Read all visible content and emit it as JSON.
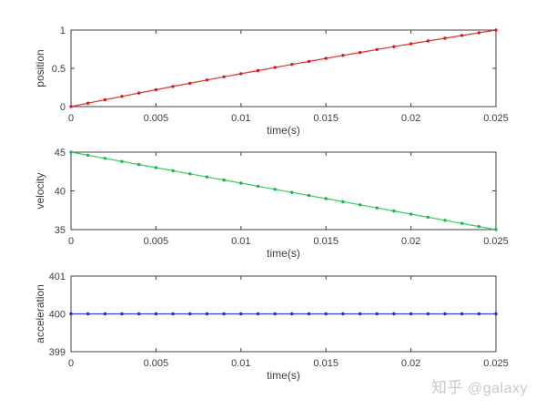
{
  "watermark": {
    "brand": "知乎",
    "user": "@galaxy"
  },
  "axis_color": "#404040",
  "tick_label_color": "#3d3d3d",
  "chart_data": [
    {
      "type": "line",
      "title": "",
      "xlabel": "time(s)",
      "ylabel": "position",
      "xlim": [
        0,
        0.025
      ],
      "ylim": [
        0,
        1
      ],
      "xticks": [
        0,
        0.005,
        0.01,
        0.015,
        0.02,
        0.025
      ],
      "xtick_labels": [
        "0",
        "0.005",
        "0.01",
        "0.015",
        "0.02",
        "0.025"
      ],
      "yticks": [
        0,
        0.5,
        1
      ],
      "ytick_labels": [
        "0",
        "0.5",
        "1"
      ],
      "line_color": "#e2342b",
      "marker_color": "#c81e24",
      "marker": "dot",
      "grid": false,
      "x": [
        0,
        0.001,
        0.002,
        0.003,
        0.004,
        0.005,
        0.006,
        0.007,
        0.008,
        0.009,
        0.01,
        0.011,
        0.012,
        0.013,
        0.014,
        0.015,
        0.016,
        0.017,
        0.018,
        0.019,
        0.02,
        0.021,
        0.022,
        0.023,
        0.024,
        0.025
      ],
      "y": [
        0,
        0.0448,
        0.0892,
        0.1332,
        0.1768,
        0.22,
        0.2628,
        0.3052,
        0.3472,
        0.3888,
        0.43,
        0.4708,
        0.5112,
        0.5512,
        0.5908,
        0.63,
        0.6688,
        0.7072,
        0.7452,
        0.7828,
        0.82,
        0.8568,
        0.8932,
        0.9292,
        0.9648,
        1.0
      ]
    },
    {
      "type": "line",
      "title": "",
      "xlabel": "time(s)",
      "ylabel": "velocity",
      "xlim": [
        0,
        0.025
      ],
      "ylim": [
        35,
        45
      ],
      "xticks": [
        0,
        0.005,
        0.01,
        0.015,
        0.02,
        0.025
      ],
      "xtick_labels": [
        "0",
        "0.005",
        "0.01",
        "0.015",
        "0.02",
        "0.025"
      ],
      "yticks": [
        35,
        40,
        45
      ],
      "ytick_labels": [
        "35",
        "40",
        "45"
      ],
      "line_color": "#35d05a",
      "marker_color": "#20b24a",
      "marker": "dot",
      "grid": false,
      "x": [
        0,
        0.001,
        0.002,
        0.003,
        0.004,
        0.005,
        0.006,
        0.007,
        0.008,
        0.009,
        0.01,
        0.011,
        0.012,
        0.013,
        0.014,
        0.015,
        0.016,
        0.017,
        0.018,
        0.019,
        0.02,
        0.021,
        0.022,
        0.023,
        0.024,
        0.025
      ],
      "y": [
        45,
        44.6,
        44.2,
        43.8,
        43.4,
        43,
        42.6,
        42.2,
        41.8,
        41.4,
        41,
        40.6,
        40.2,
        39.8,
        39.4,
        39,
        38.6,
        38.2,
        37.8,
        37.4,
        37,
        36.6,
        36.2,
        35.8,
        35.4,
        35
      ]
    },
    {
      "type": "line",
      "title": "",
      "xlabel": "time(s)",
      "ylabel": "acceleration",
      "xlim": [
        0,
        0.025
      ],
      "ylim": [
        399,
        401
      ],
      "xticks": [
        0,
        0.005,
        0.01,
        0.015,
        0.02,
        0.025
      ],
      "xtick_labels": [
        "0",
        "0.005",
        "0.01",
        "0.015",
        "0.02",
        "0.025"
      ],
      "yticks": [
        399,
        400,
        401
      ],
      "ytick_labels": [
        "399",
        "400",
        "401"
      ],
      "line_color": "#4040d9",
      "marker_color": "#2a2ab8",
      "marker": "dot",
      "grid": false,
      "x": [
        0,
        0.001,
        0.002,
        0.003,
        0.004,
        0.005,
        0.006,
        0.007,
        0.008,
        0.009,
        0.01,
        0.011,
        0.012,
        0.013,
        0.014,
        0.015,
        0.016,
        0.017,
        0.018,
        0.019,
        0.02,
        0.021,
        0.022,
        0.023,
        0.024,
        0.025
      ],
      "y": [
        400,
        400,
        400,
        400,
        400,
        400,
        400,
        400,
        400,
        400,
        400,
        400,
        400,
        400,
        400,
        400,
        400,
        400,
        400,
        400,
        400,
        400,
        400,
        400,
        400,
        400
      ]
    }
  ]
}
